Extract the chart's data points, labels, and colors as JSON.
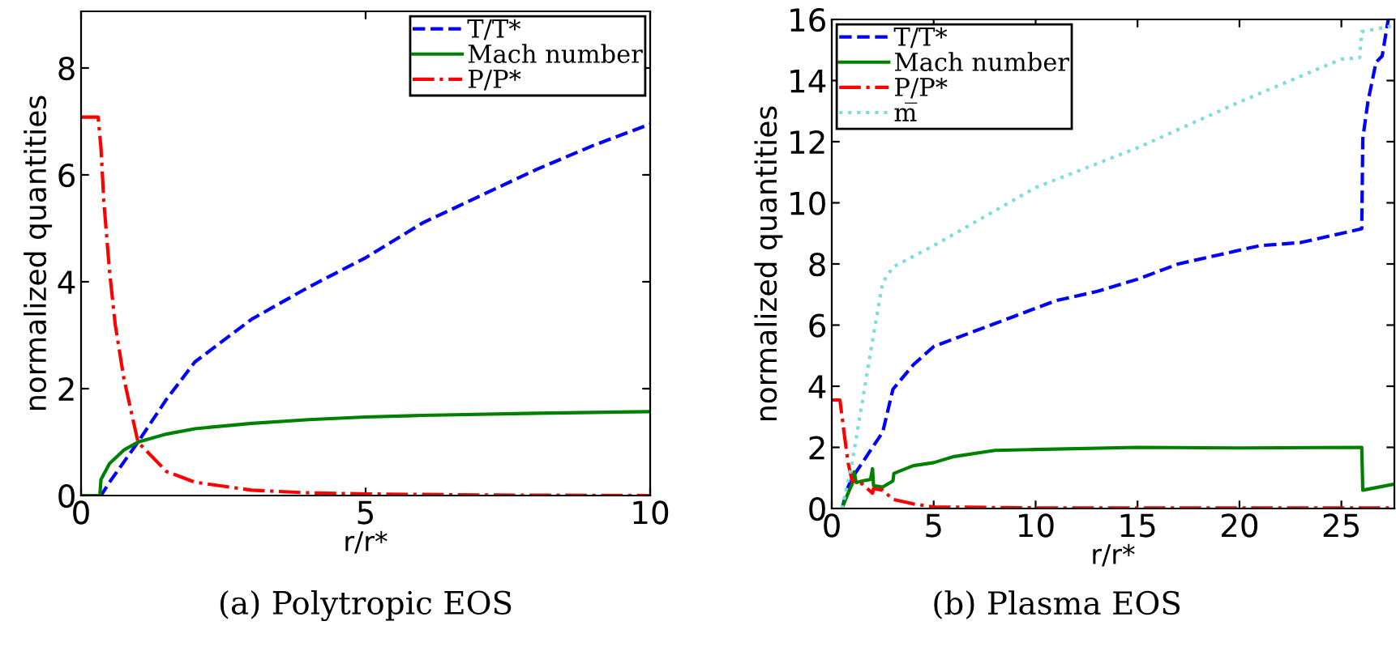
{
  "chart_data": [
    {
      "type": "line",
      "xlabel": "r/r*",
      "ylabel": "normalized quantities",
      "xlim": [
        0,
        10
      ],
      "ylim": [
        0,
        9.06
      ],
      "xticks": [
        0,
        5,
        10
      ],
      "yticks": [
        0,
        2,
        4,
        6,
        8
      ],
      "grid": false,
      "legend": "top right",
      "annotations": [
        "(a) Polytropic EOS"
      ],
      "series": [
        {
          "name": "T/T*",
          "color": "#0000ff",
          "line_style": "dashed",
          "x": [
            0,
            0.35,
            0.5,
            1,
            1.5,
            2,
            3,
            4,
            5,
            6,
            7,
            8,
            9,
            10
          ],
          "values": [
            0,
            0,
            0.25,
            1.0,
            1.8,
            2.5,
            3.3,
            3.9,
            4.45,
            5.1,
            5.6,
            6.1,
            6.55,
            6.95
          ]
        },
        {
          "name": "Mach number",
          "color": "#008000",
          "line_style": "solid",
          "x": [
            0,
            0.33,
            0.35,
            0.5,
            0.75,
            1,
            1.5,
            2,
            3,
            4,
            5,
            6,
            8,
            10
          ],
          "values": [
            0,
            0,
            0.3,
            0.6,
            0.85,
            1.0,
            1.15,
            1.25,
            1.35,
            1.42,
            1.47,
            1.5,
            1.54,
            1.57
          ]
        },
        {
          "name": "P/P*",
          "color": "#ff0000",
          "line_style": "dashdot",
          "x": [
            0,
            0.3,
            0.35,
            0.4,
            0.5,
            0.6,
            0.75,
            1,
            1.5,
            2,
            3,
            4,
            5,
            7,
            10
          ],
          "values": [
            7.08,
            7.08,
            6.5,
            5.5,
            4.2,
            3.2,
            2.2,
            1.0,
            0.45,
            0.25,
            0.1,
            0.05,
            0.03,
            0.01,
            0.0
          ]
        }
      ]
    },
    {
      "type": "line",
      "xlabel": "r/r*",
      "ylabel": "normalized quantities",
      "xlim": [
        0,
        27.6
      ],
      "ylim": [
        0,
        16
      ],
      "xticks": [
        0,
        5,
        10,
        15,
        20,
        25
      ],
      "yticks": [
        0,
        2,
        4,
        6,
        8,
        10,
        12,
        14,
        16
      ],
      "grid": false,
      "legend": "top left",
      "annotations": [
        "(b) Plasma EOS"
      ],
      "series": [
        {
          "name": "T/T*",
          "color": "#0000ff",
          "line_style": "dashed",
          "x": [
            0.5,
            0.8,
            1,
            1.5,
            2,
            2.5,
            3,
            3.5,
            4,
            5,
            7,
            9,
            11,
            13,
            15,
            17,
            19,
            21,
            23,
            25,
            26,
            26.05,
            26.3,
            26.7,
            27.0,
            27.3
          ],
          "values": [
            0,
            0.7,
            1.0,
            1.5,
            2.0,
            2.5,
            3.9,
            4.3,
            4.7,
            5.3,
            5.8,
            6.3,
            6.8,
            7.1,
            7.5,
            8.0,
            8.3,
            8.6,
            8.7,
            9.0,
            9.15,
            12.1,
            13.3,
            14.6,
            14.8,
            16.0
          ]
        },
        {
          "name": "Mach number",
          "color": "#008000",
          "line_style": "solid",
          "x": [
            0.5,
            0.8,
            1,
            1.1,
            1.2,
            1.5,
            1.9,
            2,
            2.05,
            2.5,
            3,
            3.05,
            4,
            5,
            6,
            8,
            10,
            15,
            20,
            26,
            26.05,
            27.6
          ],
          "values": [
            0,
            0.5,
            0.8,
            1.2,
            0.85,
            0.9,
            0.95,
            1.3,
            0.75,
            0.7,
            0.9,
            1.15,
            1.4,
            1.5,
            1.7,
            1.9,
            1.93,
            2.0,
            1.98,
            2.0,
            0.6,
            0.8
          ]
        },
        {
          "name": "P/P*",
          "color": "#ff0000",
          "line_style": "dashdot",
          "x": [
            0,
            0.4,
            0.6,
            0.8,
            1,
            1.5,
            2,
            2.05,
            2.5,
            3,
            4,
            5,
            10,
            27.6
          ],
          "values": [
            3.55,
            3.55,
            2.5,
            1.5,
            0.9,
            0.8,
            0.5,
            0.65,
            0.6,
            0.3,
            0.15,
            0.05,
            0.02,
            0.02
          ]
        },
        {
          "name": "m̅",
          "color": "#7fdcdc",
          "line_style": "dotted",
          "x": [
            0.5,
            1,
            1.5,
            2,
            2.5,
            3,
            5,
            10,
            15,
            20,
            25,
            25.9,
            26,
            27.6
          ],
          "values": [
            0,
            1.5,
            3.5,
            5.5,
            7.4,
            7.9,
            8.6,
            10.5,
            11.8,
            13.3,
            14.7,
            14.75,
            15.6,
            15.8
          ]
        }
      ]
    }
  ]
}
